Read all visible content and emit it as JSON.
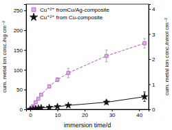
{
  "chart_data": {
    "type": "line",
    "x_label": "immersion time/d",
    "y_label": "cum. metal ion conc./ng cm⁻²",
    "y2_label": "cum. metal ion conc./nmol cm⁻²",
    "x": [
      0,
      1,
      2,
      3,
      4,
      7,
      10,
      14,
      28,
      42
    ],
    "xlim": [
      -1.5,
      43.5
    ],
    "xticks": [
      0,
      10,
      20,
      30,
      40
    ],
    "ylim": [
      0,
      266
    ],
    "yticks": [
      0,
      50,
      100,
      150,
      200,
      250
    ],
    "y2lim": [
      0,
      4.19
    ],
    "y2ticks": [
      0,
      1,
      2,
      3,
      4
    ],
    "legend": "upper-left",
    "series": [
      {
        "name": "Cu⁺²⁺ fromCu/Ag-composite",
        "color": "#b54fc4",
        "marker": "square",
        "line_style": "dashed",
        "values": [
          0,
          8,
          18,
          27,
          37,
          58,
          75,
          92,
          135,
          167
        ],
        "errors": [
          null,
          null,
          null,
          null,
          null,
          4,
          5,
          12,
          15,
          12
        ]
      },
      {
        "name": "Cu⁺²⁺ from Cu-composite",
        "color": "#111111",
        "marker": "star",
        "line_style": "solid",
        "values": [
          0,
          1,
          2,
          3,
          4,
          5,
          7,
          10,
          18,
          32
        ],
        "errors": [
          null,
          null,
          null,
          null,
          null,
          null,
          null,
          2,
          5,
          12
        ]
      }
    ]
  }
}
